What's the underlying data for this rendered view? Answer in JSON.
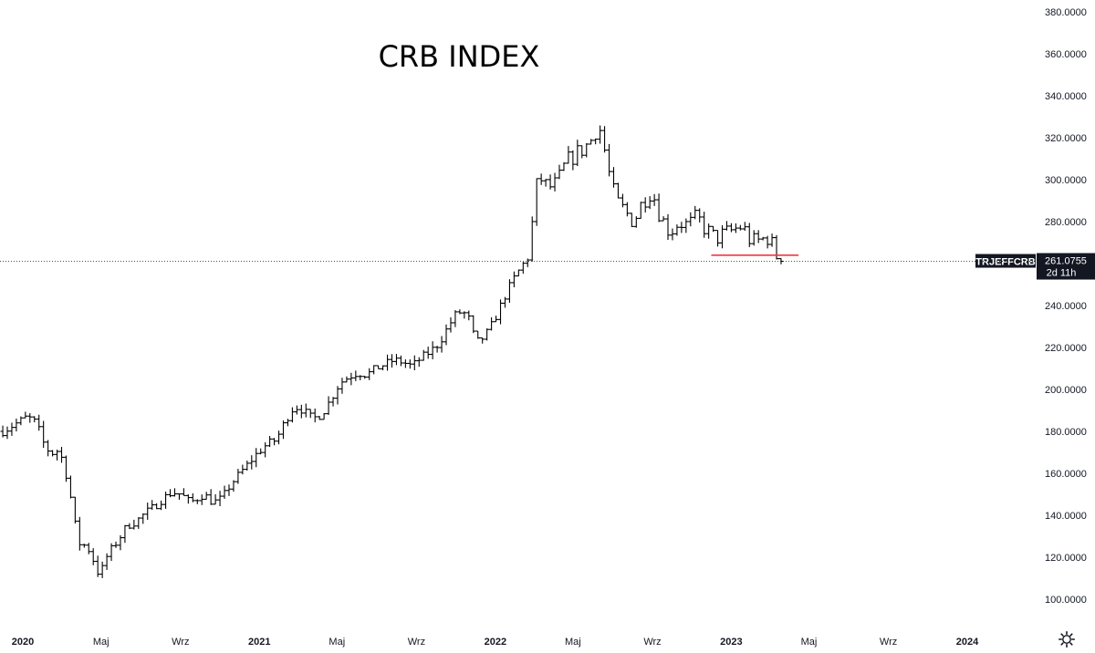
{
  "chart_data": {
    "type": "ohlc",
    "title": "CRB INDEX",
    "symbol": "TRJEFFCRB",
    "last_price": "261.0755",
    "countdown": "2d 11h",
    "ylim": [
      95,
      382
    ],
    "y_ticks": [
      {
        "value": 380,
        "label": "380.0000"
      },
      {
        "value": 360,
        "label": "360.0000"
      },
      {
        "value": 340,
        "label": "340.0000"
      },
      {
        "value": 320,
        "label": "320.0000"
      },
      {
        "value": 300,
        "label": "300.0000"
      },
      {
        "value": 280,
        "label": "280.0000"
      },
      {
        "value": 240,
        "label": "240.0000"
      },
      {
        "value": 220,
        "label": "220.0000"
      },
      {
        "value": 200,
        "label": "200.0000"
      },
      {
        "value": 180,
        "label": "180.0000"
      },
      {
        "value": 160,
        "label": "160.0000"
      },
      {
        "value": 140,
        "label": "140.0000"
      },
      {
        "value": 120,
        "label": "120.0000"
      },
      {
        "value": 100,
        "label": "100.0000"
      }
    ],
    "x_ticks": [
      {
        "date": "2020-01-01",
        "label": "2020",
        "major": true
      },
      {
        "date": "2020-05-01",
        "label": "Maj",
        "major": false
      },
      {
        "date": "2020-09-01",
        "label": "Wrz",
        "major": false
      },
      {
        "date": "2021-01-01",
        "label": "2021",
        "major": true
      },
      {
        "date": "2021-05-01",
        "label": "Maj",
        "major": false
      },
      {
        "date": "2021-09-01",
        "label": "Wrz",
        "major": false
      },
      {
        "date": "2022-01-01",
        "label": "2022",
        "major": true
      },
      {
        "date": "2022-05-01",
        "label": "Maj",
        "major": false
      },
      {
        "date": "2022-09-01",
        "label": "Wrz",
        "major": false
      },
      {
        "date": "2023-01-01",
        "label": "2023",
        "major": true
      },
      {
        "date": "2023-05-01",
        "label": "Maj",
        "major": false
      },
      {
        "date": "2023-09-01",
        "label": "Wrz",
        "major": false
      },
      {
        "date": "2024-01-01",
        "label": "2024",
        "major": true
      }
    ],
    "close_path": [
      [
        "2019-12-01",
        180
      ],
      [
        "2020-01-08",
        187
      ],
      [
        "2020-01-22",
        184
      ],
      [
        "2020-02-05",
        172
      ],
      [
        "2020-02-19",
        169
      ],
      [
        "2020-02-26",
        172
      ],
      [
        "2020-03-04",
        164
      ],
      [
        "2020-03-11",
        156
      ],
      [
        "2020-03-18",
        143
      ],
      [
        "2020-03-25",
        130
      ],
      [
        "2020-04-01",
        124
      ],
      [
        "2020-04-08",
        127
      ],
      [
        "2020-04-15",
        121
      ],
      [
        "2020-04-22",
        117
      ],
      [
        "2020-04-29",
        110
      ],
      [
        "2020-05-06",
        118
      ],
      [
        "2020-05-13",
        122
      ],
      [
        "2020-05-27",
        128
      ],
      [
        "2020-06-10",
        135
      ],
      [
        "2020-06-24",
        137
      ],
      [
        "2020-07-08",
        141
      ],
      [
        "2020-07-22",
        144
      ],
      [
        "2020-08-05",
        148
      ],
      [
        "2020-08-19",
        151
      ],
      [
        "2020-09-02",
        150
      ],
      [
        "2020-09-16",
        146
      ],
      [
        "2020-10-07",
        150
      ],
      [
        "2020-10-21",
        146
      ],
      [
        "2020-11-04",
        148
      ],
      [
        "2020-11-18",
        155
      ],
      [
        "2020-12-02",
        160
      ],
      [
        "2020-12-16",
        165
      ],
      [
        "2020-12-30",
        170
      ],
      [
        "2021-01-13",
        174
      ],
      [
        "2021-01-27",
        176
      ],
      [
        "2021-02-10",
        185
      ],
      [
        "2021-02-24",
        192
      ],
      [
        "2021-03-10",
        190
      ],
      [
        "2021-03-24",
        186
      ],
      [
        "2021-04-07",
        188
      ],
      [
        "2021-04-21",
        195
      ],
      [
        "2021-05-05",
        203
      ],
      [
        "2021-05-19",
        206
      ],
      [
        "2021-06-02",
        208
      ],
      [
        "2021-06-16",
        207
      ],
      [
        "2021-06-30",
        210
      ],
      [
        "2021-07-14",
        212
      ],
      [
        "2021-07-28",
        214
      ],
      [
        "2021-08-11",
        213
      ],
      [
        "2021-08-25",
        211
      ],
      [
        "2021-09-08",
        215
      ],
      [
        "2021-09-22",
        218
      ],
      [
        "2021-10-06",
        222
      ],
      [
        "2021-10-20",
        230
      ],
      [
        "2021-11-03",
        237
      ],
      [
        "2021-11-17",
        236
      ],
      [
        "2021-11-24",
        232
      ],
      [
        "2021-12-01",
        222
      ],
      [
        "2021-12-15",
        225
      ],
      [
        "2021-12-29",
        232
      ],
      [
        "2022-01-12",
        242
      ],
      [
        "2022-01-26",
        251
      ],
      [
        "2022-02-09",
        258
      ],
      [
        "2022-02-23",
        264
      ],
      [
        "2022-03-02",
        290
      ],
      [
        "2022-03-09",
        302
      ],
      [
        "2022-03-23",
        296
      ],
      [
        "2022-04-06",
        298
      ],
      [
        "2022-04-20",
        308
      ],
      [
        "2022-05-04",
        312
      ],
      [
        "2022-05-18",
        315
      ],
      [
        "2022-06-01",
        320
      ],
      [
        "2022-06-08",
        326
      ],
      [
        "2022-06-15",
        322
      ],
      [
        "2022-06-22",
        308
      ],
      [
        "2022-07-06",
        290
      ],
      [
        "2022-07-20",
        285
      ],
      [
        "2022-08-03",
        280
      ],
      [
        "2022-08-17",
        290
      ],
      [
        "2022-08-31",
        295
      ],
      [
        "2022-09-14",
        282
      ],
      [
        "2022-09-28",
        275
      ],
      [
        "2022-10-12",
        280
      ],
      [
        "2022-10-26",
        278
      ],
      [
        "2022-11-09",
        282
      ],
      [
        "2022-11-23",
        276
      ],
      [
        "2022-12-07",
        272
      ],
      [
        "2022-12-21",
        274
      ],
      [
        "2023-01-04",
        276
      ],
      [
        "2023-01-18",
        278
      ],
      [
        "2023-02-01",
        270
      ],
      [
        "2023-02-15",
        271
      ],
      [
        "2023-03-01",
        273
      ],
      [
        "2023-03-08",
        266
      ],
      [
        "2023-03-15",
        262
      ],
      [
        "2023-03-22",
        261
      ]
    ],
    "last_bar_date": "2023-03-22",
    "support_line": {
      "value": 264,
      "from": "2022-12-01",
      "to": "2023-04-15",
      "color": "#f23645"
    },
    "price_line": {
      "value": 261.0755
    }
  }
}
